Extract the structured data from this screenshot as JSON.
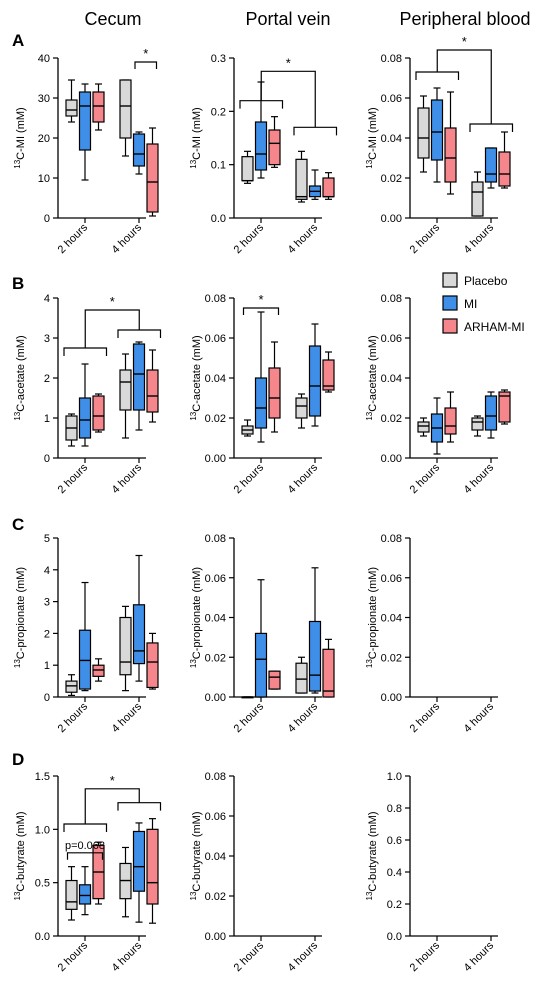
{
  "colors": {
    "Placebo": "#d9d9d9",
    "MI": "#3f8fe8",
    "ARHAM-MI": "#f4868c"
  },
  "legend": [
    "Placebo",
    "MI",
    "ARHAM-MI"
  ],
  "col_titles": [
    "Cecum",
    "Portal vein",
    "Peripheral blood"
  ],
  "row_letters": [
    "A",
    "B",
    "C",
    "D"
  ],
  "chart_data": [
    {
      "type": "box",
      "row": 0,
      "col": 0,
      "ylabel": "13C-MI (mM)",
      "ylim": [
        0,
        40
      ],
      "yticks": [
        0,
        10,
        20,
        30,
        40
      ],
      "yticklabels": [
        "0",
        "10",
        "20",
        "30",
        "40"
      ],
      "categories": [
        "2 hours",
        "4 hours"
      ],
      "boxes": [
        {
          "group": "2 hours",
          "series": "Placebo",
          "whisker_low": 24,
          "q1": 25.5,
          "median": 27,
          "q3": 29.5,
          "whisker_high": 34.5
        },
        {
          "group": "2 hours",
          "series": "MI",
          "whisker_low": 9.5,
          "q1": 17,
          "median": 28,
          "q3": 31.5,
          "whisker_high": 33.5
        },
        {
          "group": "2 hours",
          "series": "ARHAM-MI",
          "whisker_low": 22,
          "q1": 24,
          "median": 28,
          "q3": 31.5,
          "whisker_high": 33.5
        },
        {
          "group": "4 hours",
          "series": "Placebo",
          "whisker_low": 15.5,
          "q1": 20,
          "median": 28,
          "q3": 34.5,
          "whisker_high": 34.5
        },
        {
          "group": "4 hours",
          "series": "MI",
          "whisker_low": 11,
          "q1": 13,
          "median": 16,
          "q3": 21,
          "whisker_high": 21.5
        },
        {
          "group": "4 hours",
          "series": "ARHAM-MI",
          "whisker_low": 0.5,
          "q1": 1.5,
          "median": 9,
          "q3": 18.5,
          "whisker_high": 22.5
        }
      ],
      "brackets": [
        {
          "type": "simple",
          "from": {
            "group": "4 hours",
            "series": "MI"
          },
          "to": {
            "group": "4 hours",
            "series": "ARHAM-MI"
          },
          "y": 39,
          "label": "*"
        }
      ]
    },
    {
      "type": "box",
      "row": 0,
      "col": 1,
      "ylabel": "13C-MI (mM)",
      "ylim": [
        0,
        0.3
      ],
      "yticks": [
        0,
        0.1,
        0.2,
        0.3
      ],
      "yticklabels": [
        "0.0",
        "0.1",
        "0.2",
        "0.3"
      ],
      "categories": [
        "2 hours",
        "4 hours"
      ],
      "boxes": [
        {
          "group": "2 hours",
          "series": "Placebo",
          "whisker_low": 0.065,
          "q1": 0.07,
          "median": 0.07,
          "q3": 0.115,
          "whisker_high": 0.125
        },
        {
          "group": "2 hours",
          "series": "MI",
          "whisker_low": 0.075,
          "q1": 0.09,
          "median": 0.12,
          "q3": 0.18,
          "whisker_high": 0.255
        },
        {
          "group": "2 hours",
          "series": "ARHAM-MI",
          "whisker_low": 0.095,
          "q1": 0.1,
          "median": 0.14,
          "q3": 0.165,
          "whisker_high": 0.19
        },
        {
          "group": "4 hours",
          "series": "Placebo",
          "whisker_low": 0.03,
          "q1": 0.035,
          "median": 0.04,
          "q3": 0.11,
          "whisker_high": 0.125
        },
        {
          "group": "4 hours",
          "series": "MI",
          "whisker_low": 0.035,
          "q1": 0.04,
          "median": 0.05,
          "q3": 0.06,
          "whisker_high": 0.09
        },
        {
          "group": "4 hours",
          "series": "ARHAM-MI",
          "whisker_low": 0.035,
          "q1": 0.04,
          "median": 0.04,
          "q3": 0.075,
          "whisker_high": 0.085
        }
      ],
      "brackets": [
        {
          "type": "group",
          "left": "2 hours",
          "right": "4 hours",
          "y_left": 0.22,
          "y_right": 0.17,
          "y_top": 0.275,
          "label": "*"
        }
      ]
    },
    {
      "type": "box",
      "row": 0,
      "col": 2,
      "ylabel": "13C-MI (mM)",
      "ylim": [
        0,
        0.08
      ],
      "yticks": [
        0,
        0.02,
        0.04,
        0.06,
        0.08
      ],
      "yticklabels": [
        "0.00",
        "0.02",
        "0.04",
        "0.06",
        "0.08"
      ],
      "categories": [
        "2 hours",
        "4 hours"
      ],
      "boxes": [
        {
          "group": "2 hours",
          "series": "Placebo",
          "whisker_low": 0.023,
          "q1": 0.03,
          "median": 0.04,
          "q3": 0.055,
          "whisker_high": 0.061
        },
        {
          "group": "2 hours",
          "series": "MI",
          "whisker_low": 0.018,
          "q1": 0.029,
          "median": 0.043,
          "q3": 0.059,
          "whisker_high": 0.065
        },
        {
          "group": "2 hours",
          "series": "ARHAM-MI",
          "whisker_low": 0.012,
          "q1": 0.018,
          "median": 0.03,
          "q3": 0.045,
          "whisker_high": 0.063
        },
        {
          "group": "4 hours",
          "series": "Placebo",
          "whisker_low": 0.001,
          "q1": 0.001,
          "median": 0.013,
          "q3": 0.018,
          "whisker_high": 0.023
        },
        {
          "group": "4 hours",
          "series": "MI",
          "whisker_low": 0.015,
          "q1": 0.018,
          "median": 0.022,
          "q3": 0.035,
          "whisker_high": 0.035
        },
        {
          "group": "4 hours",
          "series": "ARHAM-MI",
          "whisker_low": 0.015,
          "q1": 0.016,
          "median": 0.022,
          "q3": 0.033,
          "whisker_high": 0.043
        }
      ],
      "brackets": [
        {
          "type": "group",
          "left": "2 hours",
          "right": "4 hours",
          "y_left": 0.073,
          "y_right": 0.047,
          "y_top": 0.084,
          "label": "*"
        }
      ]
    },
    {
      "type": "box",
      "row": 1,
      "col": 0,
      "ylabel": "13C-acetate (mM)",
      "ylim": [
        0,
        4
      ],
      "yticks": [
        0,
        1,
        2,
        3,
        4
      ],
      "yticklabels": [
        "0",
        "1",
        "2",
        "3",
        "4"
      ],
      "categories": [
        "2 hours",
        "4 hours"
      ],
      "boxes": [
        {
          "group": "2 hours",
          "series": "Placebo",
          "whisker_low": 0.3,
          "q1": 0.45,
          "median": 0.75,
          "q3": 1.05,
          "whisker_high": 1.1
        },
        {
          "group": "2 hours",
          "series": "MI",
          "whisker_low": 0.3,
          "q1": 0.5,
          "median": 0.95,
          "q3": 1.5,
          "whisker_high": 2.35
        },
        {
          "group": "2 hours",
          "series": "ARHAM-MI",
          "whisker_low": 0.65,
          "q1": 0.7,
          "median": 1.05,
          "q3": 1.55,
          "whisker_high": 1.6
        },
        {
          "group": "4 hours",
          "series": "Placebo",
          "whisker_low": 0.5,
          "q1": 1.2,
          "median": 1.9,
          "q3": 2.2,
          "whisker_high": 2.6
        },
        {
          "group": "4 hours",
          "series": "MI",
          "whisker_low": 0.7,
          "q1": 1.2,
          "median": 2.1,
          "q3": 2.85,
          "whisker_high": 2.9
        },
        {
          "group": "4 hours",
          "series": "ARHAM-MI",
          "whisker_low": 0.9,
          "q1": 1.15,
          "median": 1.55,
          "q3": 2.2,
          "whisker_high": 2.7
        }
      ],
      "brackets": [
        {
          "type": "group",
          "left": "2 hours",
          "right": "4 hours",
          "y_left": 2.75,
          "y_right": 3.2,
          "y_top": 3.7,
          "label": "*"
        }
      ]
    },
    {
      "type": "box",
      "row": 1,
      "col": 1,
      "ylabel": "13C-acetate (mM)",
      "ylim": [
        0,
        0.08
      ],
      "yticks": [
        0,
        0.02,
        0.04,
        0.06,
        0.08
      ],
      "yticklabels": [
        "0.00",
        "0.02",
        "0.04",
        "0.06",
        "0.08"
      ],
      "categories": [
        "2 hours",
        "4 hours"
      ],
      "boxes": [
        {
          "group": "2 hours",
          "series": "Placebo",
          "whisker_low": 0.011,
          "q1": 0.012,
          "median": 0.014,
          "q3": 0.016,
          "whisker_high": 0.019
        },
        {
          "group": "2 hours",
          "series": "MI",
          "whisker_low": 0.008,
          "q1": 0.015,
          "median": 0.025,
          "q3": 0.04,
          "whisker_high": 0.073
        },
        {
          "group": "2 hours",
          "series": "ARHAM-MI",
          "whisker_low": 0.013,
          "q1": 0.02,
          "median": 0.03,
          "q3": 0.045,
          "whisker_high": 0.058
        },
        {
          "group": "4 hours",
          "series": "Placebo",
          "whisker_low": 0.015,
          "q1": 0.02,
          "median": 0.026,
          "q3": 0.03,
          "whisker_high": 0.032
        },
        {
          "group": "4 hours",
          "series": "MI",
          "whisker_low": 0.016,
          "q1": 0.021,
          "median": 0.036,
          "q3": 0.056,
          "whisker_high": 0.067
        },
        {
          "group": "4 hours",
          "series": "ARHAM-MI",
          "whisker_low": 0.033,
          "q1": 0.034,
          "median": 0.036,
          "q3": 0.049,
          "whisker_high": 0.053
        }
      ],
      "brackets": [
        {
          "type": "simple",
          "from": {
            "group": "2 hours",
            "series": "Placebo"
          },
          "to": {
            "group": "2 hours",
            "series": "ARHAM-MI"
          },
          "y": 0.075,
          "label": "*"
        }
      ]
    },
    {
      "type": "box",
      "row": 1,
      "col": 2,
      "ylabel": "13C-acetate (mM)",
      "ylim": [
        0,
        0.08
      ],
      "yticks": [
        0,
        0.02,
        0.04,
        0.06,
        0.08
      ],
      "yticklabels": [
        "0.00",
        "0.02",
        "0.04",
        "0.06",
        "0.08"
      ],
      "categories": [
        "2 hours",
        "4 hours"
      ],
      "boxes": [
        {
          "group": "2 hours",
          "series": "Placebo",
          "whisker_low": 0.011,
          "q1": 0.013,
          "median": 0.016,
          "q3": 0.018,
          "whisker_high": 0.02
        },
        {
          "group": "2 hours",
          "series": "MI",
          "whisker_low": 0.002,
          "q1": 0.008,
          "median": 0.015,
          "q3": 0.022,
          "whisker_high": 0.03
        },
        {
          "group": "2 hours",
          "series": "ARHAM-MI",
          "whisker_low": 0.008,
          "q1": 0.012,
          "median": 0.016,
          "q3": 0.025,
          "whisker_high": 0.033
        },
        {
          "group": "4 hours",
          "series": "Placebo",
          "whisker_low": 0.011,
          "q1": 0.014,
          "median": 0.018,
          "q3": 0.02,
          "whisker_high": 0.021
        },
        {
          "group": "4 hours",
          "series": "MI",
          "whisker_low": 0.01,
          "q1": 0.014,
          "median": 0.021,
          "q3": 0.031,
          "whisker_high": 0.033
        },
        {
          "group": "4 hours",
          "series": "ARHAM-MI",
          "whisker_low": 0.017,
          "q1": 0.018,
          "median": 0.031,
          "q3": 0.033,
          "whisker_high": 0.034
        }
      ],
      "brackets": []
    },
    {
      "type": "box",
      "row": 2,
      "col": 0,
      "ylabel": "13C-propionate (mM)",
      "ylim": [
        0,
        5
      ],
      "yticks": [
        0,
        1,
        2,
        3,
        4,
        5
      ],
      "yticklabels": [
        "0",
        "1",
        "2",
        "3",
        "4",
        "5"
      ],
      "categories": [
        "2 hours",
        "4 hours"
      ],
      "boxes": [
        {
          "group": "2 hours",
          "series": "Placebo",
          "whisker_low": 0.05,
          "q1": 0.15,
          "median": 0.35,
          "q3": 0.5,
          "whisker_high": 0.7
        },
        {
          "group": "2 hours",
          "series": "MI",
          "whisker_low": 0.2,
          "q1": 0.25,
          "median": 1.15,
          "q3": 2.1,
          "whisker_high": 3.6
        },
        {
          "group": "2 hours",
          "series": "ARHAM-MI",
          "whisker_low": 0.5,
          "q1": 0.65,
          "median": 0.85,
          "q3": 1.0,
          "whisker_high": 1.2
        },
        {
          "group": "4 hours",
          "series": "Placebo",
          "whisker_low": 0.2,
          "q1": 0.7,
          "median": 1.1,
          "q3": 2.5,
          "whisker_high": 2.85
        },
        {
          "group": "4 hours",
          "series": "MI",
          "whisker_low": 0.5,
          "q1": 1.05,
          "median": 1.45,
          "q3": 2.9,
          "whisker_high": 4.45
        },
        {
          "group": "4 hours",
          "series": "ARHAM-MI",
          "whisker_low": 0.25,
          "q1": 0.3,
          "median": 1.1,
          "q3": 1.7,
          "whisker_high": 2.0
        }
      ],
      "brackets": []
    },
    {
      "type": "box",
      "row": 2,
      "col": 1,
      "ylabel": "13C-propionate (mM)",
      "ylim": [
        0,
        0.08
      ],
      "yticks": [
        0,
        0.02,
        0.04,
        0.06,
        0.08
      ],
      "yticklabels": [
        "0.00",
        "0.02",
        "0.04",
        "0.06",
        "0.08"
      ],
      "categories": [
        "2 hours",
        "4 hours"
      ],
      "boxes": [
        {
          "group": "2 hours",
          "series": "Placebo",
          "whisker_low": 0,
          "q1": 0,
          "median": 0,
          "q3": 0,
          "whisker_high": 0
        },
        {
          "group": "2 hours",
          "series": "MI",
          "whisker_low": 0,
          "q1": 0,
          "median": 0.019,
          "q3": 0.032,
          "whisker_high": 0.059
        },
        {
          "group": "2 hours",
          "series": "ARHAM-MI",
          "whisker_low": 0.004,
          "q1": 0.004,
          "median": 0.01,
          "q3": 0.013,
          "whisker_high": 0.013
        },
        {
          "group": "4 hours",
          "series": "Placebo",
          "whisker_low": 0.002,
          "q1": 0.002,
          "median": 0.009,
          "q3": 0.017,
          "whisker_high": 0.02
        },
        {
          "group": "4 hours",
          "series": "MI",
          "whisker_low": 0.002,
          "q1": 0.003,
          "median": 0.011,
          "q3": 0.038,
          "whisker_high": 0.065
        },
        {
          "group": "4 hours",
          "series": "ARHAM-MI",
          "whisker_low": 0,
          "q1": 0,
          "median": 0.003,
          "q3": 0.024,
          "whisker_high": 0.029
        }
      ],
      "brackets": []
    },
    {
      "type": "box",
      "row": 2,
      "col": 2,
      "ylabel": "13C-propionate (mM)",
      "ylim": [
        0,
        0.08
      ],
      "yticks": [
        0,
        0.02,
        0.04,
        0.06,
        0.08
      ],
      "yticklabels": [
        "0.00",
        "0.02",
        "0.04",
        "0.06",
        "0.08"
      ],
      "categories": [
        "2 hours",
        "4 hours"
      ],
      "boxes": [],
      "brackets": []
    },
    {
      "type": "box",
      "row": 3,
      "col": 0,
      "ylabel": "13C-butyrate (mM)",
      "ylim": [
        0,
        1.5
      ],
      "yticks": [
        0,
        0.5,
        1.0,
        1.5
      ],
      "yticklabels": [
        "0.0",
        "0.5",
        "1.0",
        "1.5"
      ],
      "categories": [
        "2 hours",
        "4 hours"
      ],
      "boxes": [
        {
          "group": "2 hours",
          "series": "Placebo",
          "whisker_low": 0.15,
          "q1": 0.25,
          "median": 0.32,
          "q3": 0.52,
          "whisker_high": 0.65
        },
        {
          "group": "2 hours",
          "series": "MI",
          "whisker_low": 0.2,
          "q1": 0.3,
          "median": 0.38,
          "q3": 0.48,
          "whisker_high": 0.65
        },
        {
          "group": "2 hours",
          "series": "ARHAM-MI",
          "whisker_low": 0.3,
          "q1": 0.35,
          "median": 0.6,
          "q3": 0.85,
          "whisker_high": 0.88
        },
        {
          "group": "4 hours",
          "series": "Placebo",
          "whisker_low": 0.18,
          "q1": 0.35,
          "median": 0.52,
          "q3": 0.68,
          "whisker_high": 0.83
        },
        {
          "group": "4 hours",
          "series": "MI",
          "whisker_low": 0.13,
          "q1": 0.42,
          "median": 0.65,
          "q3": 0.98,
          "whisker_high": 1.06
        },
        {
          "group": "4 hours",
          "series": "ARHAM-MI",
          "whisker_low": 0.12,
          "q1": 0.3,
          "median": 0.5,
          "q3": 1.0,
          "whisker_high": 1.1
        }
      ],
      "brackets": [
        {
          "type": "simple",
          "from": {
            "group": "2 hours",
            "series": "Placebo"
          },
          "to": {
            "group": "2 hours",
            "series": "ARHAM-MI"
          },
          "y": 0.78,
          "label": "p=0.068"
        },
        {
          "type": "group",
          "left": "2 hours",
          "right": "4 hours",
          "y_left": 1.05,
          "y_right": 1.25,
          "y_top": 1.38,
          "label": "*"
        }
      ]
    },
    {
      "type": "box",
      "row": 3,
      "col": 1,
      "ylabel": "13C-butyrate (mM)",
      "ylim": [
        0,
        0.08
      ],
      "yticks": [
        0,
        0.02,
        0.04,
        0.06,
        0.08
      ],
      "yticklabels": [
        "0.00",
        "0.02",
        "0.04",
        "0.06",
        "0.08"
      ],
      "categories": [
        "2 hours",
        "4 hours"
      ],
      "boxes": [],
      "brackets": []
    },
    {
      "type": "box",
      "row": 3,
      "col": 2,
      "ylabel": "13C-butyrate (mM)",
      "ylim": [
        0,
        1.0
      ],
      "yticks": [
        0,
        0.2,
        0.4,
        0.6,
        0.8,
        1.0
      ],
      "yticklabels": [
        "0.0",
        "0.2",
        "0.4",
        "0.6",
        "0.8",
        "1.0"
      ],
      "categories": [
        "2 hours",
        "4 hours"
      ],
      "boxes": [],
      "brackets": []
    }
  ]
}
